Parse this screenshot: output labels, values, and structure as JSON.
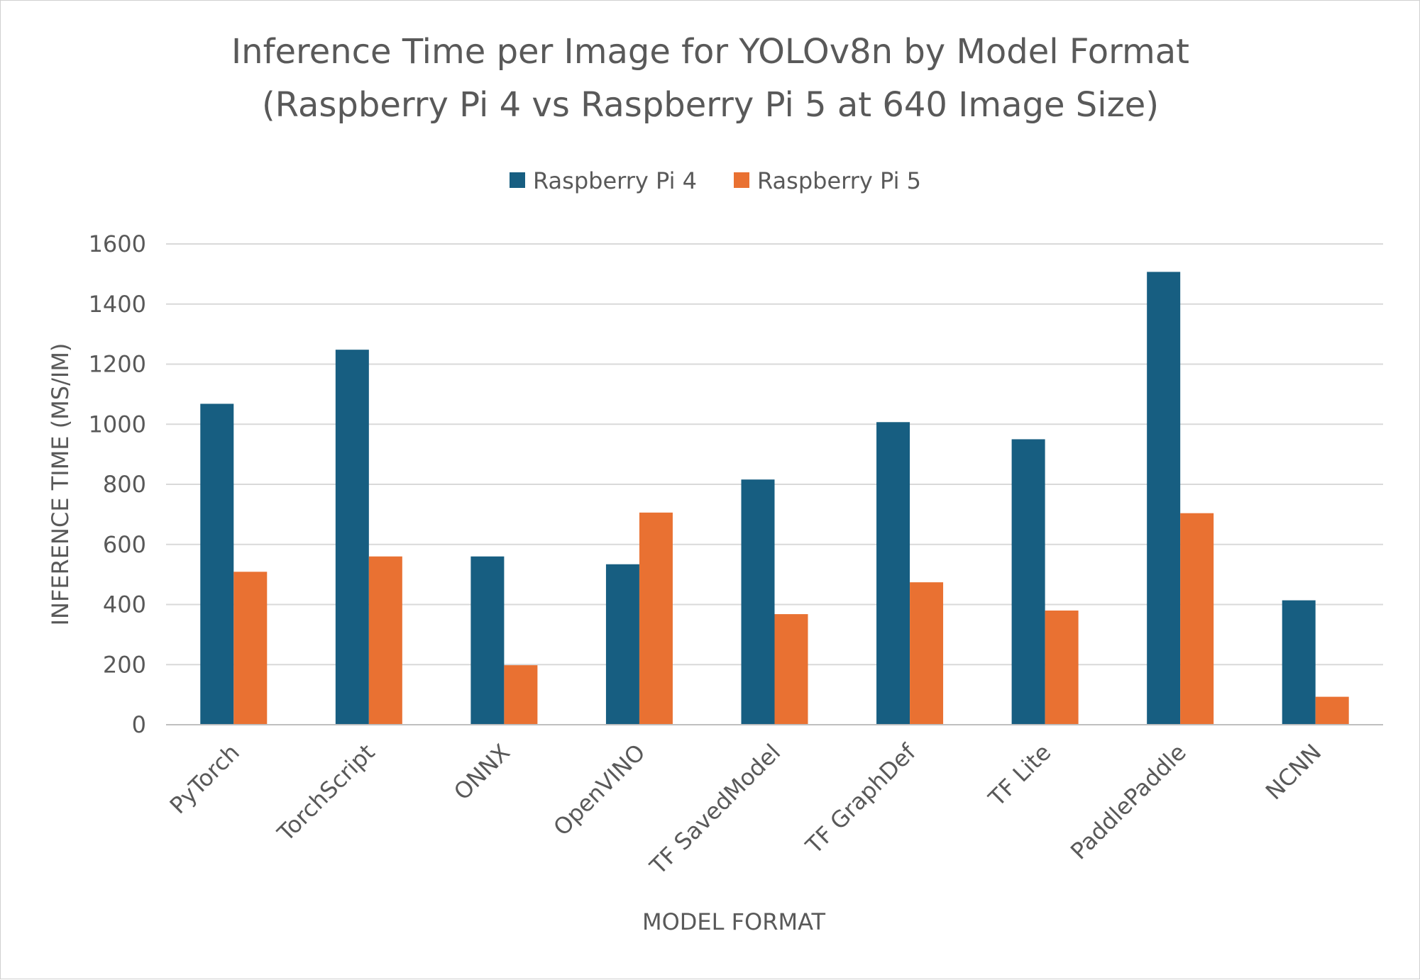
{
  "chart_data": {
    "type": "bar",
    "title": "Inference Time per Image for YOLOv8n by Model Format",
    "subtitle": "(Raspberry Pi 4 vs Raspberry Pi 5 at 640 Image Size)",
    "xlabel": "MODEL FORMAT",
    "ylabel": "INFERENCE TIME (MS/IM)",
    "categories": [
      "PyTorch",
      "TorchScript",
      "ONNX",
      "OpenVINO",
      "TF SavedModel",
      "TF GraphDef",
      "TF Lite",
      "PaddlePaddle",
      "NCNN"
    ],
    "series": [
      {
        "name": "Raspberry Pi 4",
        "color": "#175E81",
        "values": [
          1068,
          1248,
          560,
          534,
          816,
          1007,
          950,
          1507,
          414
        ]
      },
      {
        "name": "Raspberry Pi 5",
        "color": "#E97132",
        "values": [
          509,
          560,
          198,
          706,
          368,
          474,
          380,
          704,
          93
        ]
      }
    ],
    "ylim": [
      0,
      1600
    ],
    "yticks": [
      0,
      200,
      400,
      600,
      800,
      1000,
      1200,
      1400,
      1600
    ],
    "grid": true,
    "legend": "top-center"
  }
}
